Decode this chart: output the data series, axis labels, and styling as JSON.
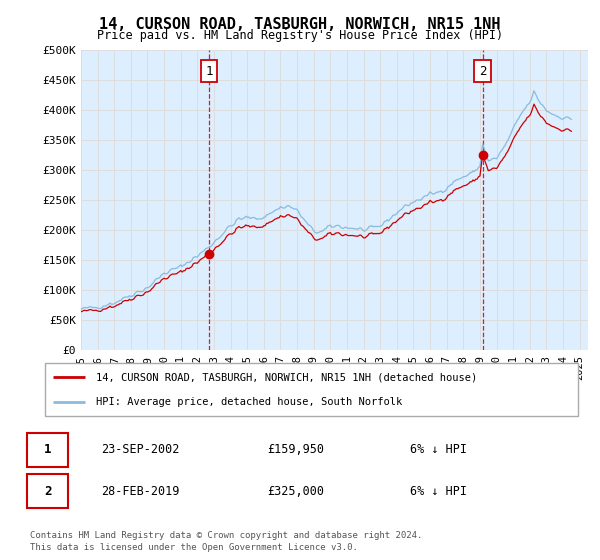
{
  "title": "14, CURSON ROAD, TASBURGH, NORWICH, NR15 1NH",
  "subtitle": "Price paid vs. HM Land Registry's House Price Index (HPI)",
  "ylabel_ticks": [
    0,
    50000,
    100000,
    150000,
    200000,
    250000,
    300000,
    350000,
    400000,
    450000,
    500000
  ],
  "ylabel_labels": [
    "£0",
    "£50K",
    "£100K",
    "£150K",
    "£200K",
    "£250K",
    "£300K",
    "£350K",
    "£400K",
    "£450K",
    "£500K"
  ],
  "ylim": [
    0,
    500000
  ],
  "xlim_start": 1995.0,
  "xlim_end": 2025.5,
  "transaction1_date": 2002.72,
  "transaction1_value": 159950,
  "transaction2_date": 2019.16,
  "transaction2_value": 325000,
  "line_color_red": "#cc0000",
  "line_color_blue": "#88bbdd",
  "vline_color": "#cc0000",
  "legend_label_red": "14, CURSON ROAD, TASBURGH, NORWICH, NR15 1NH (detached house)",
  "legend_label_blue": "HPI: Average price, detached house, South Norfolk",
  "footer1": "Contains HM Land Registry data © Crown copyright and database right 2024.",
  "footer2": "This data is licensed under the Open Government Licence v3.0.",
  "table_row1": [
    "1",
    "23-SEP-2002",
    "£159,950",
    "6% ↓ HPI"
  ],
  "table_row2": [
    "2",
    "28-FEB-2019",
    "£325,000",
    "6% ↓ HPI"
  ],
  "bg_color": "#ffffff",
  "grid_color": "#dddddd",
  "plot_bg_color": "#ddeeff"
}
